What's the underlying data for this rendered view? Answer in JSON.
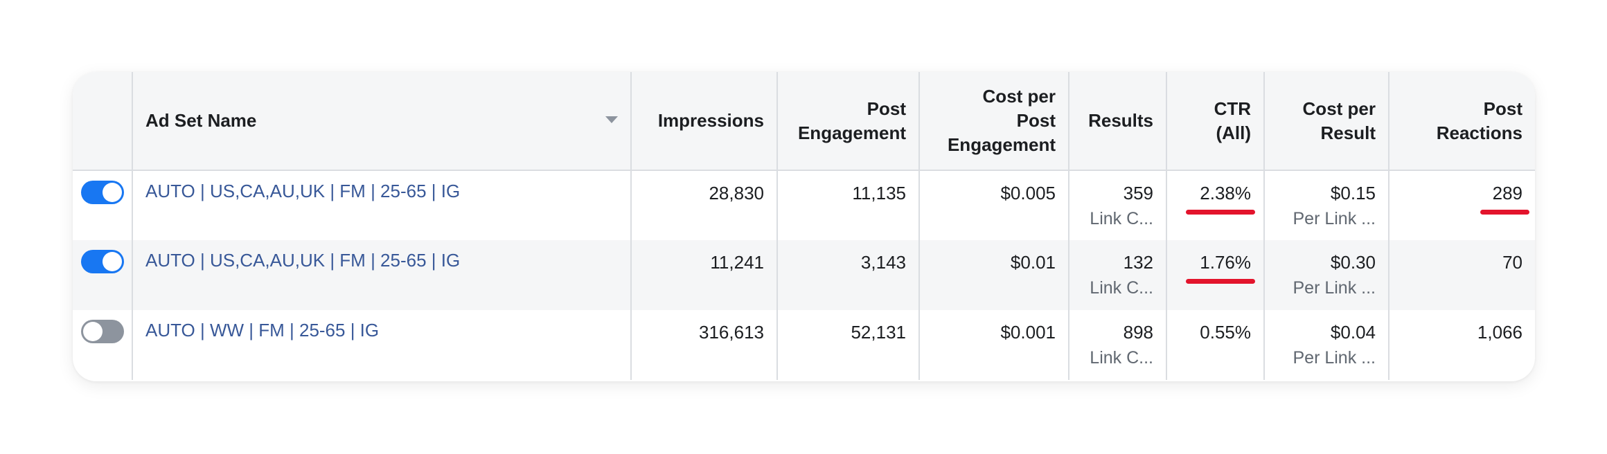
{
  "headers": {
    "ad_set_name": "Ad Set Name",
    "impressions": "Impressions",
    "post_engagement": [
      "Post",
      "Engagement"
    ],
    "cost_per_post_engagement": [
      "Cost per",
      "Post",
      "Engagement"
    ],
    "results": "Results",
    "ctr": [
      "CTR",
      "(All)"
    ],
    "cost_per_result": [
      "Cost per",
      "Result"
    ],
    "post_reactions": [
      "Post",
      "Reactions"
    ]
  },
  "rows": [
    {
      "enabled": true,
      "name": "AUTO | US,CA,AU,UK | FM | 25-65 | IG",
      "impressions": "28,830",
      "post_engagement": "11,135",
      "cost_per_post_engagement": "$0.005",
      "results": "359",
      "results_sub": "Link C...",
      "ctr": "2.38%",
      "cost_per_result": "$0.15",
      "cost_per_result_sub": "Per Link ...",
      "post_reactions": "289"
    },
    {
      "enabled": true,
      "name": "AUTO | US,CA,AU,UK | FM | 25-65 | IG",
      "impressions": "11,241",
      "post_engagement": "3,143",
      "cost_per_post_engagement": "$0.01",
      "results": "132",
      "results_sub": "Link C...",
      "ctr": "1.76%",
      "cost_per_result": "$0.30",
      "cost_per_result_sub": "Per Link ...",
      "post_reactions": "70"
    },
    {
      "enabled": false,
      "name": "AUTO | WW | FM | 25-65 | IG",
      "impressions": "316,613",
      "post_engagement": "52,131",
      "cost_per_post_engagement": "$0.001",
      "results": "898",
      "results_sub": "Link C...",
      "ctr": "0.55%",
      "cost_per_result": "$0.04",
      "cost_per_result_sub": "Per Link ...",
      "post_reactions": "1,066"
    }
  ],
  "annotations": {
    "underline_color": "#e3142c",
    "underlined_cells": [
      "rows.0.ctr",
      "rows.1.ctr",
      "rows.0.post_reactions"
    ]
  },
  "colors": {
    "toggle_on": "#1877f2",
    "toggle_off": "#8d949e",
    "link": "#385898",
    "header_bg": "#f5f6f7"
  }
}
